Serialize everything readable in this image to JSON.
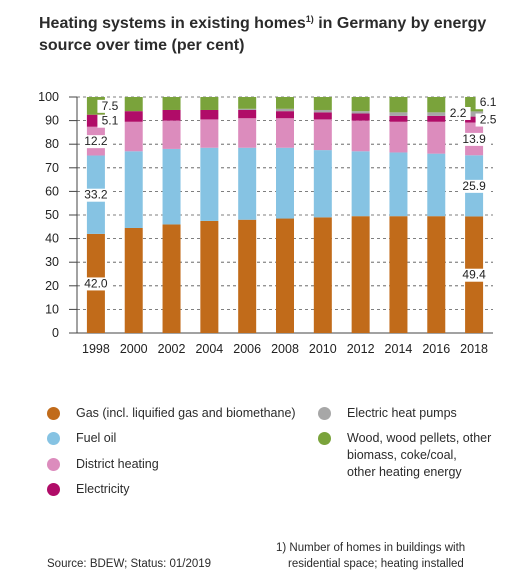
{
  "header": {
    "title_main": "Heating systems in existing homes",
    "title_sup": "1)",
    "title_rest": " in Germany by energy source over time (per cent)"
  },
  "chart_data": {
    "type": "bar",
    "stacked": true,
    "categories": [
      "1998",
      "2000",
      "2002",
      "2004",
      "2006",
      "2008",
      "2010",
      "2012",
      "2014",
      "2016",
      "2018"
    ],
    "ylim": [
      0,
      100
    ],
    "yticks": [
      0,
      10,
      20,
      30,
      40,
      50,
      60,
      70,
      80,
      90,
      100
    ],
    "grid": true,
    "series": [
      {
        "name": "Gas (incl. liquified gas and biomethane)",
        "color": "#c16b1a",
        "values": [
          42.0,
          44.5,
          46.0,
          47.5,
          48.0,
          48.5,
          49.0,
          49.5,
          49.5,
          49.5,
          49.4
        ]
      },
      {
        "name": "Fuel oil",
        "color": "#86c3e3",
        "values": [
          33.2,
          32.5,
          32.0,
          31.0,
          30.5,
          30.0,
          28.5,
          27.5,
          27.0,
          26.5,
          25.9
        ]
      },
      {
        "name": "District heating",
        "color": "#dc8cbd",
        "values": [
          12.2,
          12.5,
          12.0,
          12.0,
          12.5,
          12.5,
          13.0,
          13.0,
          13.0,
          13.5,
          13.9
        ]
      },
      {
        "name": "Electricity",
        "color": "#b00c68",
        "values": [
          5.1,
          4.5,
          4.5,
          4.0,
          3.5,
          3.0,
          3.0,
          3.0,
          2.5,
          2.5,
          2.5
        ]
      },
      {
        "name": "Electric heat pumps",
        "color": "#a7a7a7",
        "values": [
          0.0,
          0.0,
          0.0,
          0.0,
          0.5,
          1.0,
          1.0,
          1.0,
          1.5,
          1.5,
          2.2
        ]
      },
      {
        "name": "Wood, wood pellets, other biomass, coke/coal, other heating energy",
        "color": "#7aa33b",
        "values": [
          7.5,
          6.0,
          5.5,
          5.5,
          5.0,
          5.0,
          5.5,
          6.0,
          6.5,
          6.5,
          6.1
        ]
      }
    ],
    "data_labels": {
      "first": {
        "gas": "42.0",
        "fuel_oil": "33.2",
        "district": "12.2",
        "electricity": "5.1",
        "wood": "7.5"
      },
      "last": {
        "gas": "49.4",
        "fuel_oil": "25.9",
        "district": "13.9",
        "electricity": "2.5",
        "heat_pumps": "2.2",
        "wood": "6.1"
      }
    }
  },
  "legend": {
    "items": [
      {
        "label": "Gas (incl. liquified gas and biomethane)",
        "color": "#c16b1a"
      },
      {
        "label": "Fuel oil",
        "color": "#86c3e3"
      },
      {
        "label": "District heating",
        "color": "#dc8cbd"
      },
      {
        "label": "Electricity",
        "color": "#b00c68"
      },
      {
        "label": "Electric heat pumps",
        "color": "#a7a7a7"
      },
      {
        "label_line1": "Wood, wood pellets, other",
        "label_line2": "biomass, coke/coal,",
        "label_line3": "other heating energy",
        "color": "#7aa33b"
      }
    ]
  },
  "footer": {
    "source": "Source: BDEW; Status: 01/2019",
    "note_line1": "1) Number of homes in buildings with",
    "note_line2": "residential space; heating installed"
  }
}
